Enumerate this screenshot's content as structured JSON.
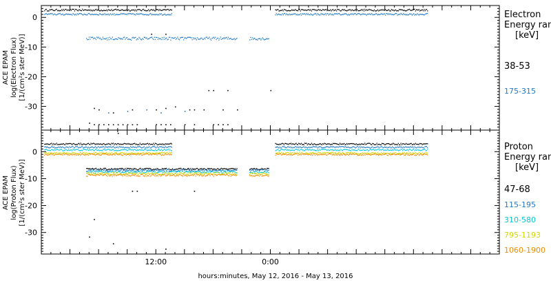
{
  "chart_data": [
    {
      "type": "scatter",
      "panel": "electron",
      "ylabel": [
        "ACE EPAM",
        "log(Electron Flux)",
        "[1/(cm²s ster MeV)]"
      ],
      "ylim": [
        -38,
        4
      ],
      "yticks": [
        0,
        -10,
        -20,
        -30
      ],
      "legend_title": [
        "Electron",
        "Energy ran",
        "[keV]"
      ],
      "series": [
        {
          "name": "38-53",
          "color": "#000000",
          "segments": [
            {
              "t0": 0.3,
              "t1": 13.7,
              "y": 2.6,
              "jitter": 0.3
            },
            {
              "t0": 24.5,
              "t1": 40.5,
              "y": 2.6,
              "jitter": 0.3
            }
          ],
          "points": [
            [
              5.5,
              -30.5
            ],
            [
              6,
              -31
            ],
            [
              7.5,
              -32
            ],
            [
              9.5,
              -31
            ],
            [
              12,
              -31
            ],
            [
              13,
              -30.5
            ],
            [
              14,
              -30
            ],
            [
              15.5,
              -31
            ],
            [
              16,
              -31
            ],
            [
              17,
              -31
            ],
            [
              19,
              -31
            ],
            [
              20.5,
              -31
            ],
            [
              19.5,
              -24.5
            ],
            [
              17.5,
              -24.5
            ],
            [
              18,
              -24.5
            ],
            [
              24,
              -24.5
            ],
            [
              11.5,
              -5.5
            ],
            [
              13,
              -5.5
            ],
            [
              5,
              -35.5
            ],
            [
              5.5,
              -36
            ],
            [
              6,
              -36
            ],
            [
              6.5,
              -36
            ],
            [
              7,
              -36
            ],
            [
              7.5,
              -36
            ],
            [
              8,
              -36
            ],
            [
              8.5,
              -36
            ],
            [
              9,
              -36
            ],
            [
              9.5,
              -36
            ],
            [
              10,
              -36
            ],
            [
              12,
              -36
            ],
            [
              12.5,
              -36
            ],
            [
              13,
              -36
            ],
            [
              13.5,
              -36
            ],
            [
              15,
              -36
            ],
            [
              16,
              -36
            ],
            [
              18,
              -36
            ],
            [
              18.5,
              -36
            ],
            [
              19,
              -36
            ],
            [
              19.5,
              -36
            ]
          ]
        },
        {
          "name": "175-315",
          "color": "#1f78c8",
          "segments": [
            {
              "t0": 0.3,
              "t1": 13.7,
              "y": 1.2,
              "jitter": 0.3
            },
            {
              "t0": 4.7,
              "t1": 20.5,
              "y": -7.0,
              "jitter": 0.5
            },
            {
              "t0": 21.8,
              "t1": 23.8,
              "y": -7.0,
              "jitter": 0.5
            },
            {
              "t0": 24.5,
              "t1": 40.5,
              "y": 1.2,
              "jitter": 0.3
            }
          ],
          "points": [
            [
              7,
              -32
            ],
            [
              9,
              -31.5
            ],
            [
              11,
              -31
            ],
            [
              12.5,
              -32
            ],
            [
              15,
              -31.5
            ]
          ]
        }
      ]
    },
    {
      "type": "scatter",
      "panel": "proton",
      "ylabel": [
        "ACE EPAM",
        "log(Proton Flux)",
        "[1/(cm²s ster MeV)]"
      ],
      "ylim": [
        -38,
        8
      ],
      "yticks": [
        0,
        -10,
        -20,
        -30
      ],
      "legend_title": [
        "Proton",
        "Energy ran",
        "[keV]"
      ],
      "series": [
        {
          "name": "47-68",
          "color": "#000000",
          "segments": [
            {
              "t0": 0.3,
              "t1": 13.7,
              "y": 3.0,
              "jitter": 0.3
            },
            {
              "t0": 4.7,
              "t1": 20.5,
              "y": -6.3,
              "jitter": 0.3
            },
            {
              "t0": 21.8,
              "t1": 23.8,
              "y": -6.3,
              "jitter": 0.3
            },
            {
              "t0": 24.5,
              "t1": 40.5,
              "y": 3.0,
              "jitter": 0.3
            }
          ],
          "points": [
            [
              8,
              7
            ],
            [
              5.5,
              -25
            ],
            [
              5,
              -31.5
            ],
            [
              7.5,
              -34
            ],
            [
              9.5,
              -14.5
            ],
            [
              10,
              -14.5
            ],
            [
              13,
              -36
            ],
            [
              16,
              -14.5
            ]
          ]
        },
        {
          "name": "115-195",
          "color": "#1f78c8",
          "segments": [
            {
              "t0": 0.3,
              "t1": 13.7,
              "y": 1.8,
              "jitter": 0.3
            },
            {
              "t0": 4.7,
              "t1": 20.5,
              "y": -6.8,
              "jitter": 0.4
            },
            {
              "t0": 21.8,
              "t1": 23.8,
              "y": -6.8,
              "jitter": 0.4
            },
            {
              "t0": 24.5,
              "t1": 40.5,
              "y": 1.8,
              "jitter": 0.3
            }
          ],
          "points": []
        },
        {
          "name": "310-580",
          "color": "#00c8dc",
          "segments": [
            {
              "t0": 0.3,
              "t1": 13.7,
              "y": 0.8,
              "jitter": 0.3
            },
            {
              "t0": 4.7,
              "t1": 20.5,
              "y": -7.4,
              "jitter": 0.4
            },
            {
              "t0": 21.8,
              "t1": 23.8,
              "y": -7.4,
              "jitter": 0.4
            },
            {
              "t0": 24.5,
              "t1": 40.5,
              "y": 0.8,
              "jitter": 0.3
            }
          ],
          "points": []
        },
        {
          "name": "795-1193",
          "color": "#d0d800",
          "segments": [
            {
              "t0": 0.3,
              "t1": 13.7,
              "y": -0.4,
              "jitter": 0.3
            },
            {
              "t0": 4.7,
              "t1": 20.5,
              "y": -8.0,
              "jitter": 0.4
            },
            {
              "t0": 21.8,
              "t1": 23.8,
              "y": -8.0,
              "jitter": 0.4
            },
            {
              "t0": 24.5,
              "t1": 40.5,
              "y": -0.4,
              "jitter": 0.3
            }
          ],
          "points": []
        },
        {
          "name": "1060-1900",
          "color": "#f08c00",
          "segments": [
            {
              "t0": 0.3,
              "t1": 13.7,
              "y": -0.9,
              "jitter": 0.3
            },
            {
              "t0": 4.7,
              "t1": 20.5,
              "y": -8.6,
              "jitter": 0.4
            },
            {
              "t0": 21.8,
              "t1": 23.8,
              "y": -8.6,
              "jitter": 0.4
            },
            {
              "t0": 24.5,
              "t1": 40.5,
              "y": -0.9,
              "jitter": 0.3
            }
          ],
          "points": []
        }
      ]
    }
  ],
  "x_axis": {
    "label": "hours:minutes, May 12, 2016 - May 13, 2016",
    "range_hours": [
      0,
      48
    ],
    "tick_labels": [
      {
        "t": 12,
        "label": "12:00"
      },
      {
        "t": 24,
        "label": "0:00"
      }
    ],
    "minor_step_hours": 1,
    "major_step_hours": 3
  }
}
